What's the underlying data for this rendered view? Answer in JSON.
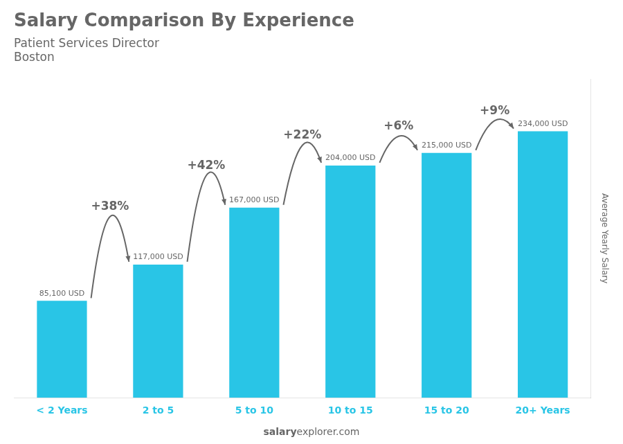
{
  "chart_data": {
    "type": "bar",
    "title": "Salary Comparison By Experience",
    "subtitle": [
      "Patient Services Director",
      "Boston"
    ],
    "categories": [
      "< 2 Years",
      "2 to 5",
      "5 to 10",
      "10 to 15",
      "15 to 20",
      "20+ Years"
    ],
    "values": [
      85100,
      117000,
      167000,
      204000,
      215000,
      234000
    ],
    "value_labels": [
      "85,100 USD",
      "117,000 USD",
      "167,000 USD",
      "204,000 USD",
      "215,000 USD",
      "234,000 USD"
    ],
    "data_labels": true,
    "annotations": [
      "+38%",
      "+42%",
      "+22%",
      "+6%",
      "+9%"
    ],
    "ylabel": "Average Yearly Salary",
    "footer": [
      "salary",
      "explorer.com"
    ],
    "color": "#29c5e6",
    "ylim": [
      0,
      280000
    ],
    "grid": false,
    "tick_labels": "x"
  }
}
